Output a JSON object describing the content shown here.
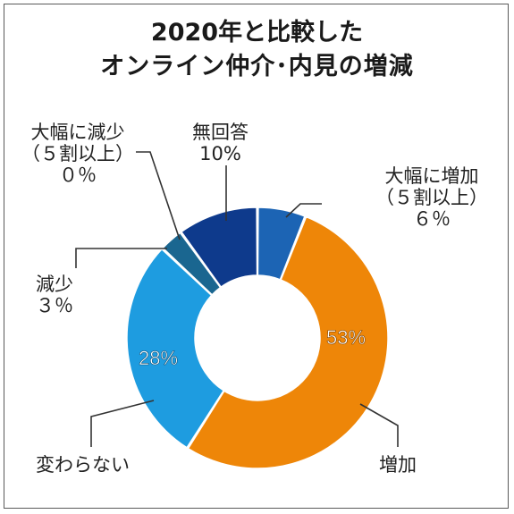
{
  "title": {
    "line1": "2020年と比較した",
    "line2": "オンライン仲介･内見の増減"
  },
  "chart_data": {
    "type": "donut",
    "title": "2020年と比較した オンライン仲介･内見の増減",
    "unit": "%",
    "slices": [
      {
        "label": "大幅に増加（５割以上）",
        "value": 6,
        "display": "６％",
        "color": "#1c64b4"
      },
      {
        "label": "増加",
        "value": 53,
        "display": "53%",
        "color": "#ee8608"
      },
      {
        "label": "変わらない",
        "value": 28,
        "display": "28%",
        "color": "#1e9ce0"
      },
      {
        "label": "減少",
        "value": 3,
        "display": "３％",
        "color": "#1a6690"
      },
      {
        "label": "大幅に減少（５割以上）",
        "value": 0,
        "display": "０％",
        "color": "#ffffff"
      },
      {
        "label": "無回答",
        "value": 10,
        "display": "10%",
        "color": "#0e3a8c"
      }
    ]
  },
  "labels": {
    "big_increase": {
      "line1": "大幅に増加",
      "line2": "（５割以上）",
      "value": "６％"
    },
    "increase": {
      "name": "増加",
      "value": "53%"
    },
    "no_change": {
      "name": "変わらない",
      "value": "28%"
    },
    "decrease": {
      "line1": "減少",
      "value": "３％"
    },
    "big_decrease": {
      "line1": "大幅に減少",
      "line2": "（５割以上）",
      "value": "０％"
    },
    "no_answer": {
      "line1": "無回答",
      "value": "10%"
    }
  }
}
